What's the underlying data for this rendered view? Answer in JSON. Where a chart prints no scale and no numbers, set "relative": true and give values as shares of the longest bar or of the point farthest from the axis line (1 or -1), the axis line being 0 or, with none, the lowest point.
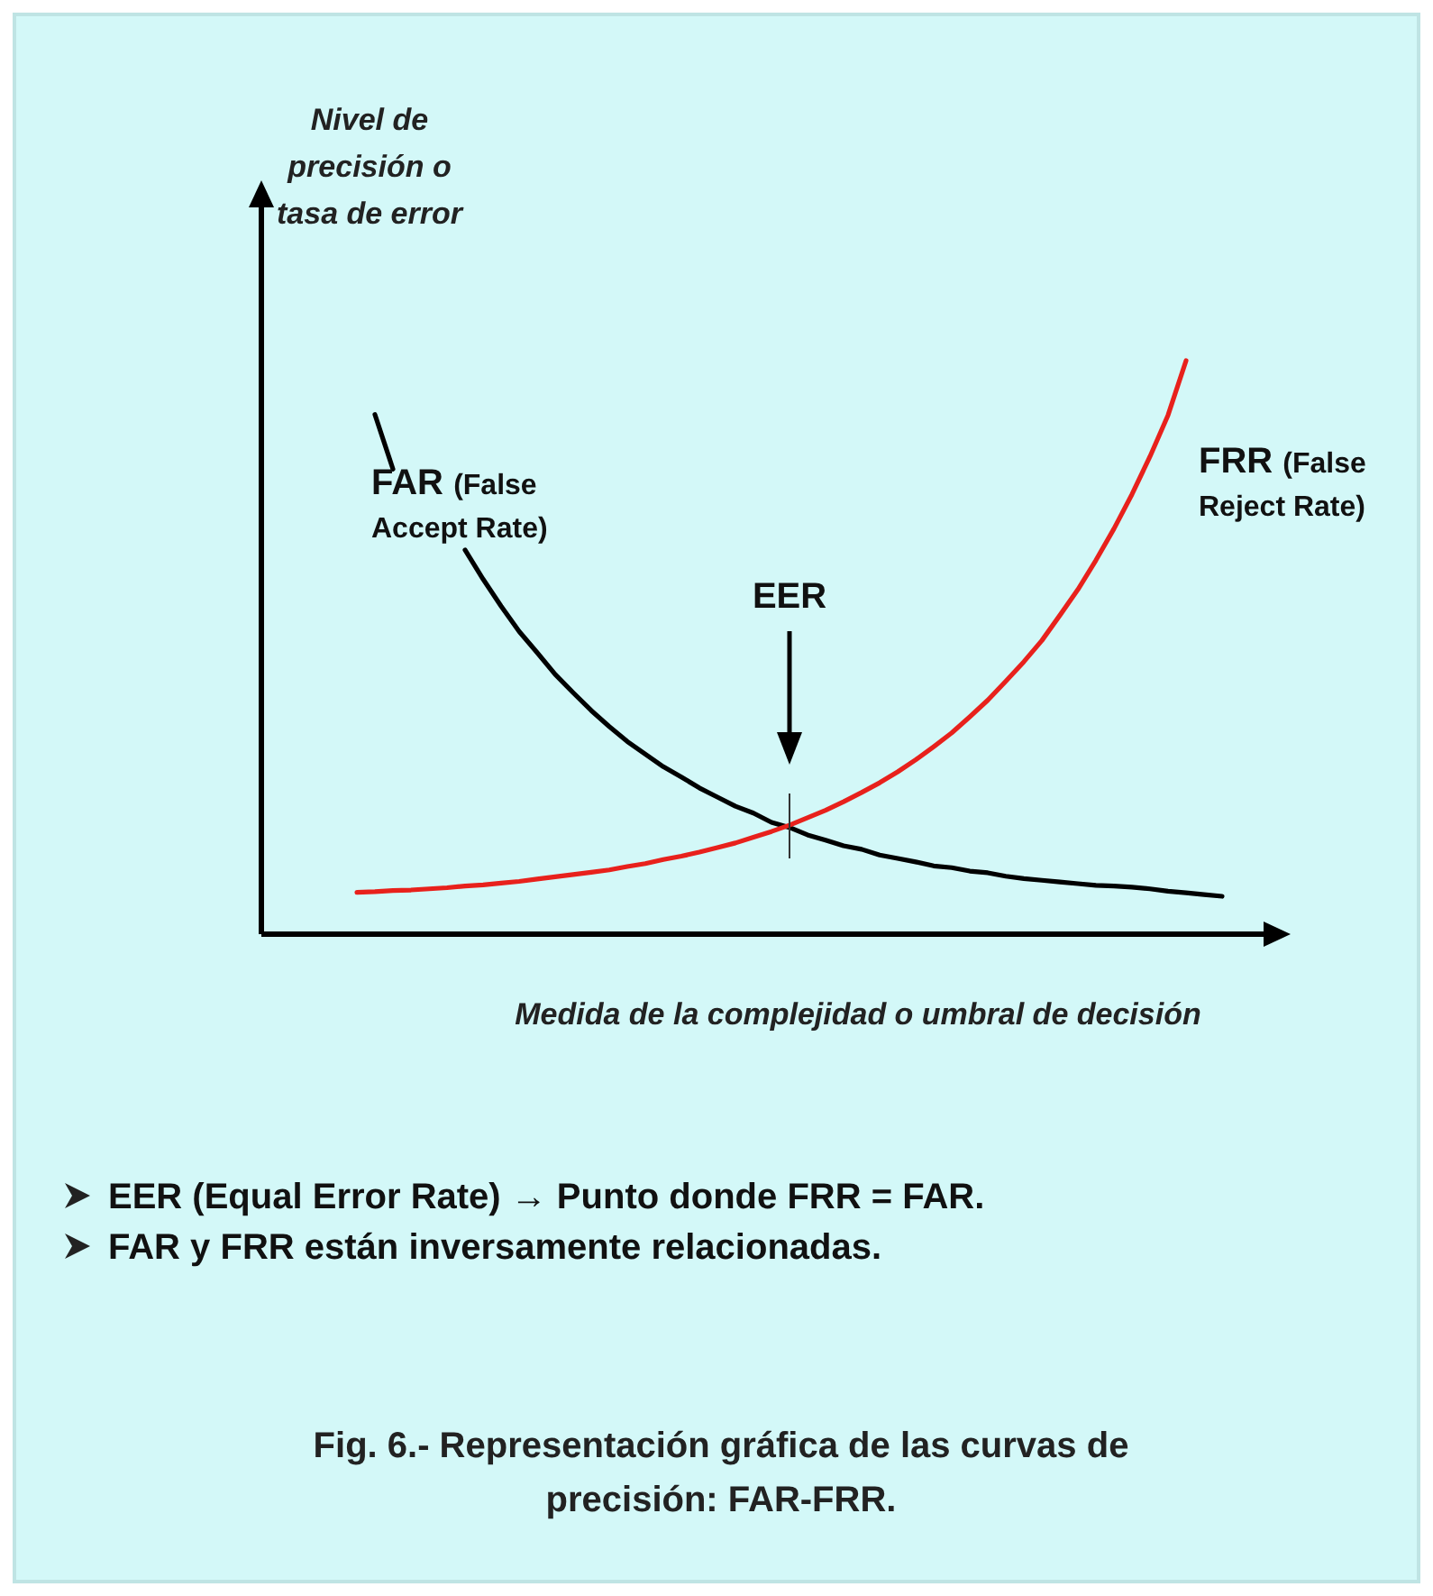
{
  "chart_data": {
    "type": "line",
    "relative": true,
    "ylabel": "Nivel de precisión o tasa de error",
    "xlabel": "Medida de la complejidad o umbral de decisión",
    "categories": [
      null,
      null,
      null,
      null,
      null,
      null,
      null,
      null,
      null,
      null,
      null,
      null,
      null,
      null,
      null,
      null,
      null,
      null,
      null,
      null,
      null,
      null,
      null,
      null,
      null,
      null,
      null,
      null,
      null,
      null,
      null,
      null,
      null,
      null,
      null,
      null,
      null,
      null,
      null,
      null,
      null,
      null,
      null,
      null,
      null,
      null,
      null,
      null,
      null
    ],
    "series": [
      {
        "name": "FAR (False Accept Rate)",
        "color": "#000000",
        "values": [
          null,
          0.906,
          0.811,
          null,
          null,
          null,
          0.67,
          0.619,
          0.572,
          0.528,
          0.491,
          0.453,
          0.421,
          0.39,
          0.362,
          0.336,
          0.314,
          0.292,
          0.274,
          0.255,
          0.239,
          0.223,
          0.211,
          0.195,
          0.186,
          0.173,
          0.164,
          0.154,
          0.148,
          0.138,
          0.132,
          0.126,
          0.119,
          0.116,
          0.11,
          0.107,
          0.101,
          0.097,
          0.094,
          0.091,
          0.088,
          0.085,
          0.084,
          0.082,
          0.079,
          0.075,
          0.072,
          0.069,
          0.066
        ]
      },
      {
        "name": "FRR (False Reject Rate)",
        "color": "#e8211c",
        "values": [
          0.073,
          0.074,
          0.076,
          0.077,
          0.079,
          0.081,
          0.084,
          0.086,
          0.089,
          0.092,
          0.096,
          0.1,
          0.104,
          0.108,
          0.112,
          0.118,
          0.123,
          0.13,
          0.136,
          0.143,
          0.151,
          0.159,
          0.169,
          0.179,
          0.19,
          0.203,
          0.216,
          0.231,
          0.247,
          0.264,
          0.283,
          0.304,
          0.327,
          0.351,
          0.379,
          0.408,
          0.441,
          0.475,
          0.512,
          0.556,
          0.601,
          0.652,
          0.707,
          0.767,
          0.833,
          0.905,
          1.0,
          null,
          null
        ]
      }
    ],
    "annotations": [
      "EER",
      "EER (Equal Error Rate) → Punto donde FRR = FAR.",
      "FAR y FRR están inversamente relacionadas.",
      "Fig. 6.- Representación gráfica de las curvas de precisión: FAR-FRR."
    ],
    "line_style": "solid",
    "marker": "none"
  }
}
